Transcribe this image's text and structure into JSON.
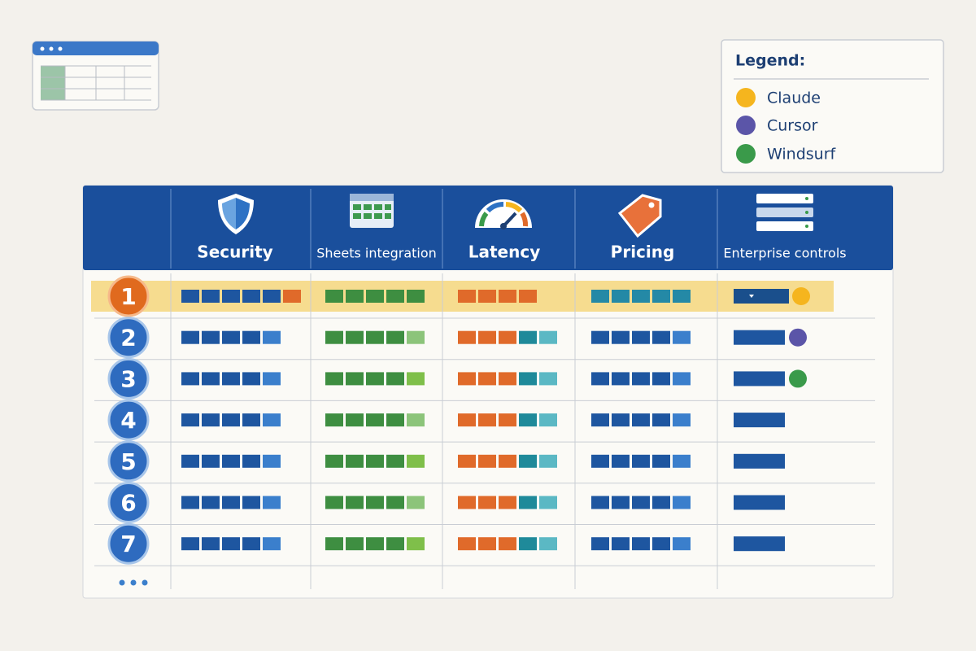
{
  "legend": {
    "title": "Legend:",
    "items": [
      "Claude",
      "Cursor",
      "Windsurf"
    ]
  },
  "table": {
    "columns": [
      "Security",
      "Sheets integration",
      "Latency",
      "Pricing",
      "Enterprise controls"
    ],
    "rows": [
      "1",
      "2",
      "3",
      "4",
      "5",
      "6",
      "7"
    ]
  }
}
